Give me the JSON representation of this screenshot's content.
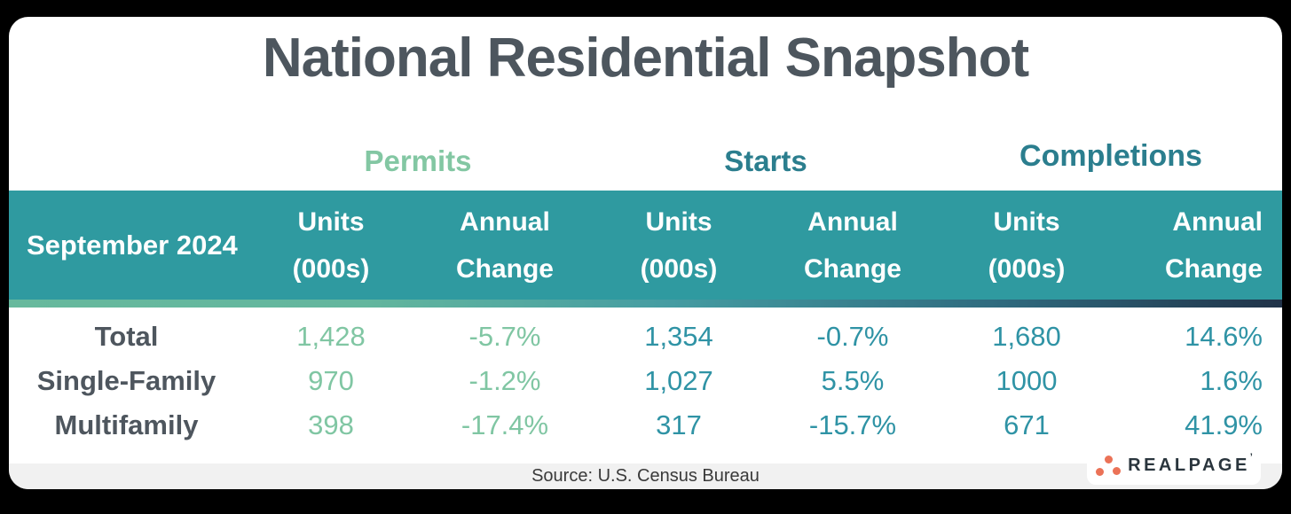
{
  "title": "National Residential Snapshot",
  "table": {
    "period_label": "September 2024",
    "groups": [
      {
        "label": "Permits"
      },
      {
        "label": "Starts"
      },
      {
        "label": "Completions"
      }
    ],
    "subheader": {
      "units_line1": "Units",
      "units_line2": "(000s)",
      "change_line1": "Annual",
      "change_line2": "Change"
    },
    "rows": [
      {
        "label": "Total",
        "values": [
          "1,428",
          "-5.7%",
          "1,354",
          "-0.7%",
          "1,680",
          "14.6%"
        ]
      },
      {
        "label": "Single-Family",
        "values": [
          "970",
          "-1.2%",
          "1,027",
          "5.5%",
          "1000",
          "1.6%"
        ]
      },
      {
        "label": "Multifamily",
        "values": [
          "398",
          "-17.4%",
          "317",
          "-15.7%",
          "671",
          "41.9%"
        ]
      }
    ]
  },
  "footer": {
    "source": "Source: U.S. Census Bureau"
  },
  "logo": {
    "text": "REALPAGE",
    "mark": "’"
  },
  "colors": {
    "header_band_teal": "#2f9aa0",
    "permits_green": "#80c6a3",
    "group_teal": "#2b7e8e",
    "value_teal": "#2f93a5",
    "title_gray": "#4d565e",
    "footer_gray": "#f1f1f1",
    "logo_orange": "#eb7257",
    "logo_navy": "#2a353d"
  },
  "chart_data": {
    "type": "table",
    "title": "National Residential Snapshot",
    "period": "September 2024",
    "source": "Source: U.S. Census Bureau",
    "column_groups": [
      "Permits",
      "Starts",
      "Completions"
    ],
    "columns": [
      "Permits Units (000s)",
      "Permits Annual Change",
      "Starts Units (000s)",
      "Starts Annual Change",
      "Completions Units (000s)",
      "Completions Annual Change"
    ],
    "categories": [
      "Total",
      "Single-Family",
      "Multifamily"
    ],
    "series": [
      {
        "name": "Permits Units (000s)",
        "values": [
          1428,
          970,
          398
        ]
      },
      {
        "name": "Permits Annual Change %",
        "values": [
          -5.7,
          -1.2,
          -17.4
        ]
      },
      {
        "name": "Starts Units (000s)",
        "values": [
          1354,
          1027,
          317
        ]
      },
      {
        "name": "Starts Annual Change %",
        "values": [
          -0.7,
          5.5,
          -15.7
        ]
      },
      {
        "name": "Completions Units (000s)",
        "values": [
          1680,
          1000,
          671
        ]
      },
      {
        "name": "Completions Annual Change %",
        "values": [
          14.6,
          1.6,
          41.9
        ]
      }
    ]
  }
}
